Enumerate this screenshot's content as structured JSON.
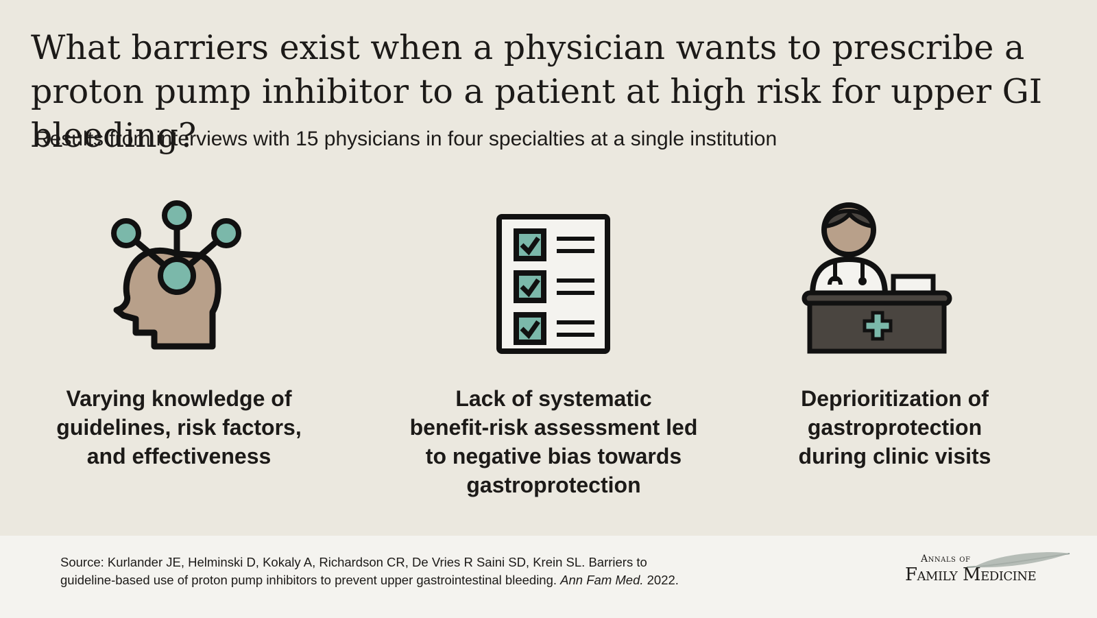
{
  "header": {
    "title": "What barriers exist when a physician wants to prescribe a proton pump inhibitor to a patient at high risk for upper GI bleeding?",
    "subtitle": "Results from interviews with 15 physicians in four specialties at a single institution"
  },
  "barriers": [
    {
      "icon": "head-network-icon",
      "caption_lines": [
        "Varying knowledge of",
        "guidelines, risk factors,",
        "and effectiveness"
      ]
    },
    {
      "icon": "checklist-icon",
      "caption_lines": [
        "Lack of systematic",
        "benefit-risk assessment led",
        "to negative bias towards",
        "gastroprotection"
      ]
    },
    {
      "icon": "physician-desk-icon",
      "caption_lines": [
        "Deprioritization of",
        "gastroprotection",
        "during clinic visits"
      ]
    }
  ],
  "footer": {
    "source_line1": "Source: Kurlander JE, Helminski D, Kokaly A, Richardson CR, De Vries R Saini SD, Krein SL. Barriers to",
    "source_line2": "guideline-based use of proton pump inhibitors to prevent upper gastrointestinal bleeding.",
    "journal_abbrev": "Ann Fam Med.",
    "year": "2022.",
    "logo_small": "Annals of",
    "logo_big": "Family Medicine"
  },
  "colors": {
    "background": "#ebe8df",
    "footer_background": "#f4f3ef",
    "teal": "#7bb8aa",
    "skin": "#b8a08a",
    "desk": "#4a4540",
    "outline": "#111111"
  }
}
